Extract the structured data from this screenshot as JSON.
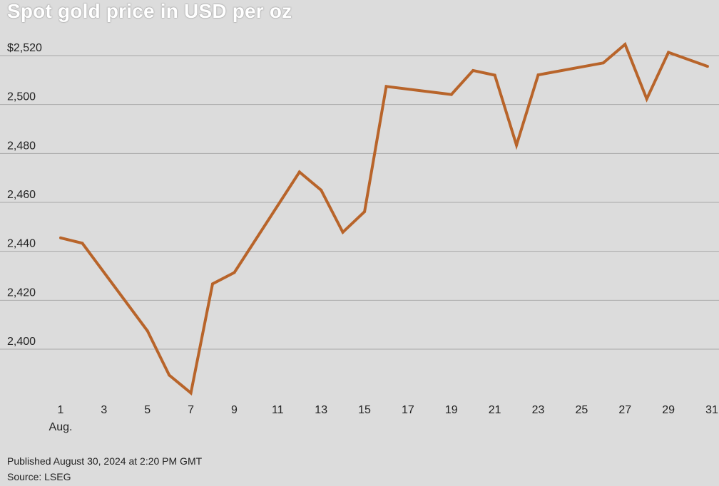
{
  "title": "Spot gold price in USD per oz",
  "footer": {
    "published": "Published August 30, 2024 at 2:20 PM GMT",
    "source": "Source: LSEG"
  },
  "colors": {
    "line": "#b8642a",
    "grid": "#a8a8a8",
    "text": "#222222"
  },
  "chart_data": {
    "type": "line",
    "title": "Spot gold price in USD per oz",
    "xlabel": "",
    "ylabel": "",
    "x_unit_label": "Aug.",
    "xlim": [
      1,
      31
    ],
    "ylim": [
      2380,
      2530
    ],
    "grid": true,
    "y_ticks": [
      2400,
      2420,
      2440,
      2460,
      2480,
      2500,
      2520
    ],
    "y_tick_labels": [
      "2,400",
      "2,420",
      "2,440",
      "2,460",
      "2,480",
      "2,500",
      "$2,520"
    ],
    "x_ticks": [
      1,
      3,
      5,
      7,
      9,
      11,
      13,
      15,
      17,
      19,
      21,
      23,
      25,
      27,
      29,
      31
    ],
    "x_tick_labels": [
      "1",
      "3",
      "5",
      "7",
      "9",
      "11",
      "13",
      "15",
      "17",
      "19",
      "21",
      "23",
      "25",
      "27",
      "29",
      "31"
    ],
    "series": [
      {
        "x": [
          1,
          2,
          5,
          6,
          7,
          8,
          9,
          12,
          13,
          14,
          15,
          16,
          19,
          20,
          21,
          22,
          23,
          26,
          27,
          28,
          29,
          30.8
        ],
        "values": [
          2445.5,
          2443.3,
          2407.5,
          2389.4,
          2382.1,
          2426.7,
          2431.3,
          2472.4,
          2465.0,
          2447.8,
          2456.2,
          2507.4,
          2504.1,
          2513.9,
          2512.0,
          2483.4,
          2512.1,
          2517.0,
          2524.6,
          2502.3,
          2521.3,
          2515.6
        ]
      }
    ]
  }
}
